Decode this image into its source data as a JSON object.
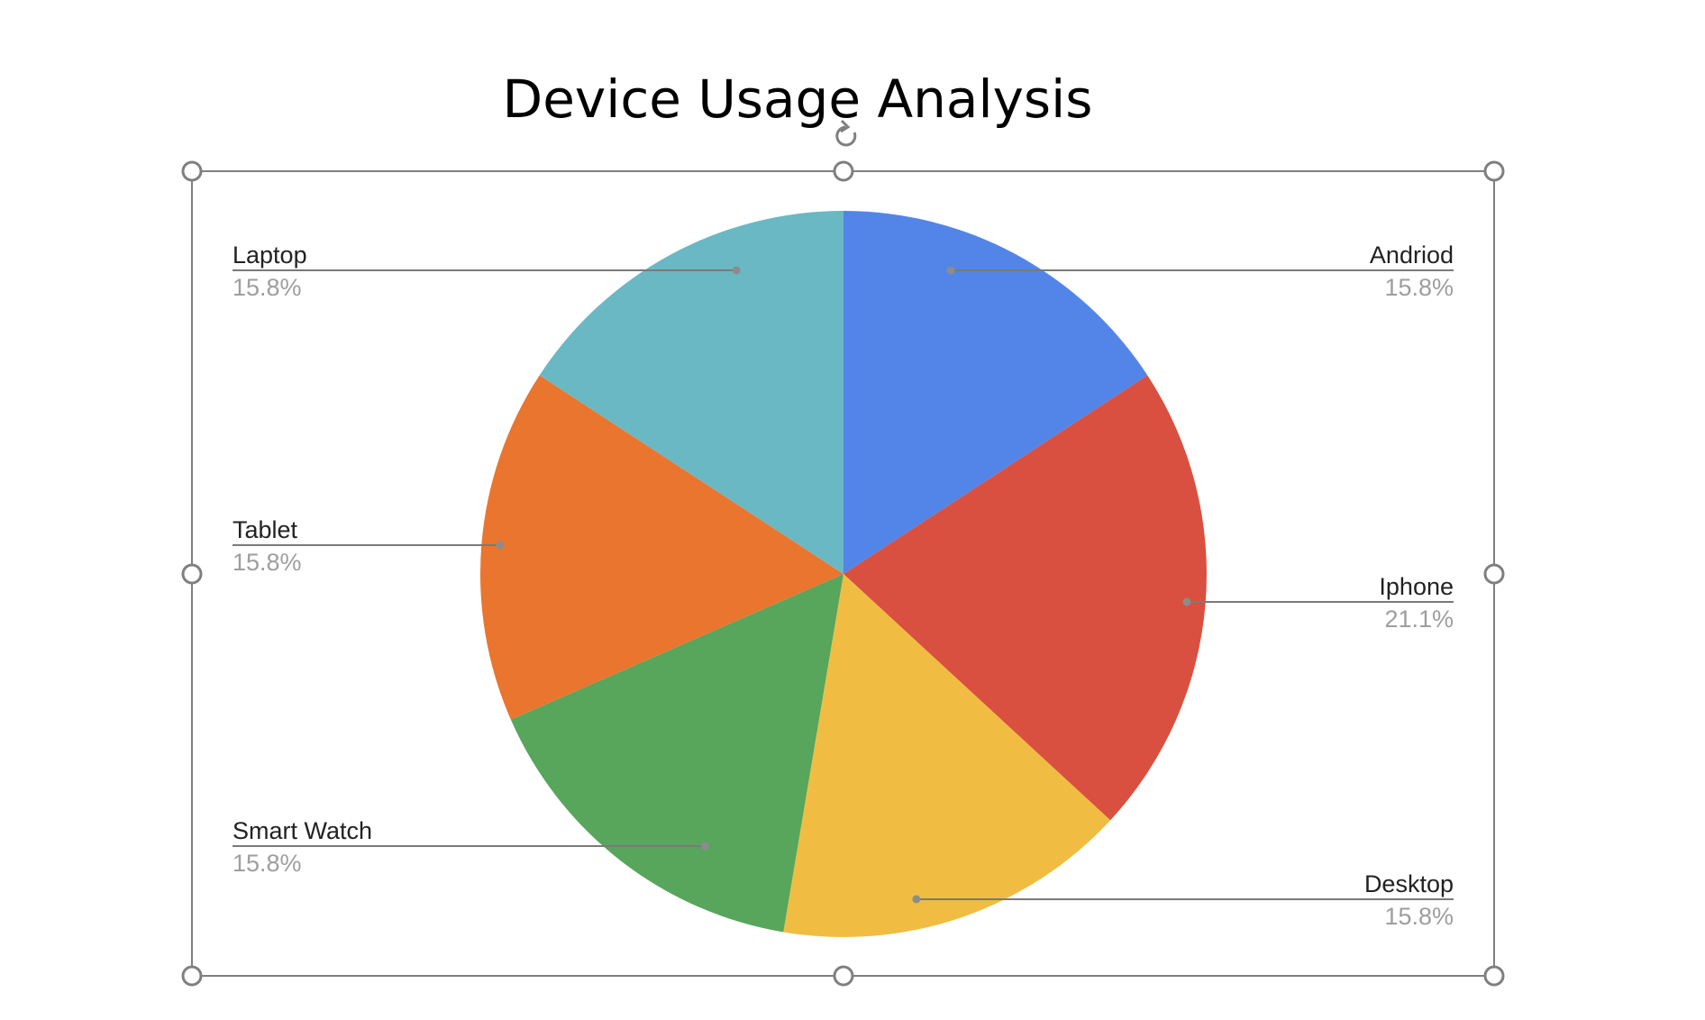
{
  "chart_data": {
    "type": "pie",
    "title": "Device Usage Analysis",
    "categories": [
      "Andriod",
      "Iphone",
      "Desktop",
      "Smart Watch",
      "Tablet",
      "Laptop"
    ],
    "values": [
      15.8,
      21.1,
      15.8,
      15.8,
      15.8,
      15.8
    ],
    "value_labels": [
      "15.8%",
      "21.1%",
      "15.8%",
      "15.8%",
      "15.8%",
      "15.8%"
    ],
    "colors": [
      "#5385e8",
      "#d95040",
      "#f0bd42",
      "#58a55c",
      "#e9752f",
      "#6ab8c4"
    ],
    "start_angle": "12 o'clock",
    "direction": "clockwise",
    "legend": "none",
    "label_style": "outside with leader lines"
  },
  "selection": {
    "selected": true,
    "handles": [
      "top-left",
      "top-center",
      "top-right",
      "middle-left",
      "middle-right",
      "bottom-left",
      "bottom-center",
      "bottom-right"
    ],
    "rotate_icon": "rotate-handle-icon"
  }
}
